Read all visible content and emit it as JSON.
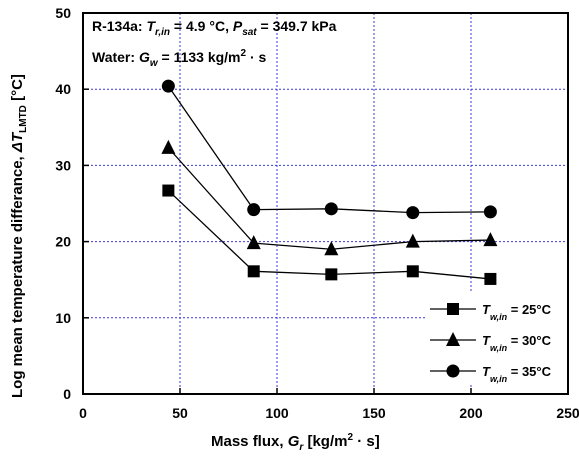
{
  "chart_data": {
    "type": "line",
    "xlabel": "Mass flux, G_r [kg/m² · s]",
    "ylabel": "Log mean temperature differance, ΔT_LMTD [°C]",
    "xlim": [
      0,
      250
    ],
    "ylim": [
      0,
      50
    ],
    "xticks": [
      0,
      50,
      100,
      150,
      200,
      250
    ],
    "yticks": [
      0,
      10,
      20,
      30,
      40,
      50
    ],
    "grid": true,
    "legend_position": "bottom-right",
    "annotations": [
      "R-134a: T_r,in = 4.9 °C, P_sat = 349.7 kPa",
      "Water: G_w = 1133 kg/m² · s"
    ],
    "series": [
      {
        "name": "T_w,in = 25°C",
        "marker": "square",
        "x": [
          44,
          88,
          128,
          170,
          210
        ],
        "y": [
          26.7,
          16.1,
          15.7,
          16.1,
          15.1
        ]
      },
      {
        "name": "T_w,in = 30°C",
        "marker": "triangle",
        "x": [
          44,
          88,
          128,
          170,
          210
        ],
        "y": [
          32.3,
          19.8,
          19.0,
          20.0,
          20.2
        ]
      },
      {
        "name": "T_w,in = 35°C",
        "marker": "circle",
        "x": [
          44,
          88,
          128,
          170,
          210
        ],
        "y": [
          40.4,
          24.2,
          24.3,
          23.8,
          23.9
        ]
      }
    ]
  },
  "text": {
    "xlabel_main": "Mass flux, ",
    "xlabel_var": "G",
    "xlabel_sub": "r",
    "xlabel_unit_a": " [kg/m",
    "xlabel_sup": "2",
    "xlabel_unit_b": " · s]",
    "ylabel_main": "Log mean temperature differance, ",
    "ylabel_var": "ΔT",
    "ylabel_sub": "LMTD",
    "ylabel_unit": " [°C]",
    "ann1_a": "R-134a: ",
    "ann1_t": "T",
    "ann1_tsub": "r,in",
    "ann1_b": " = 4.9 °C, ",
    "ann1_p": "P",
    "ann1_psub": "sat",
    "ann1_c": " = 349.7 kPa",
    "ann2_a": "Water: ",
    "ann2_g": "G",
    "ann2_gsub": "w",
    "ann2_b": " = 1133 kg/m",
    "ann2_sup": "2",
    "ann2_c": " · s",
    "leg_var": "T",
    "leg_sub": "w,in",
    "leg_vals": [
      " = 25°C",
      " = 30°C",
      " = 35°C"
    ]
  }
}
